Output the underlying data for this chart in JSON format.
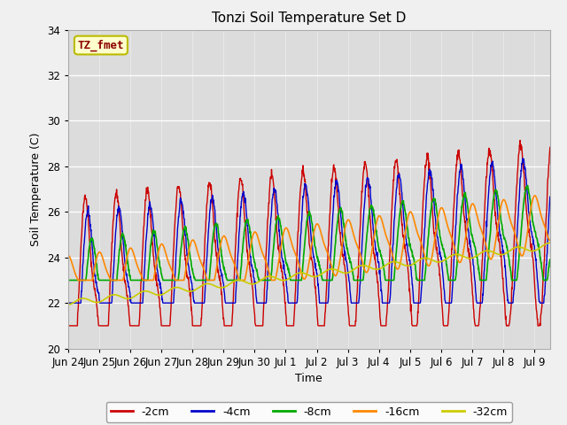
{
  "title": "Tonzi Soil Temperature Set D",
  "xlabel": "Time",
  "ylabel": "Soil Temperature (C)",
  "ylim": [
    20,
    34
  ],
  "background_color": "#dcdcdc",
  "plot_bg": "#dcdcdc",
  "annotation_text": "TZ_fmet",
  "annotation_color": "#8b0000",
  "annotation_bg": "#ffffcc",
  "annotation_border": "#bbbb00",
  "series_labels": [
    "-2cm",
    "-4cm",
    "-8cm",
    "-16cm",
    "-32cm"
  ],
  "series_colors": [
    "#cc0000",
    "#0000cc",
    "#00aa00",
    "#ff8800",
    "#cccc00"
  ],
  "xtick_labels": [
    "Jun 24",
    "Jun 25",
    "Jun 26",
    "Jun 27",
    "Jun 28",
    "Jun 29",
    "Jun 30",
    "Jul 1",
    "Jul 2",
    "Jul 3",
    "Jul 4",
    "Jul 5",
    "Jul 6",
    "Jul 7",
    "Jul 8",
    "Jul 9"
  ],
  "figsize": [
    6.4,
    4.8
  ],
  "dpi": 100
}
